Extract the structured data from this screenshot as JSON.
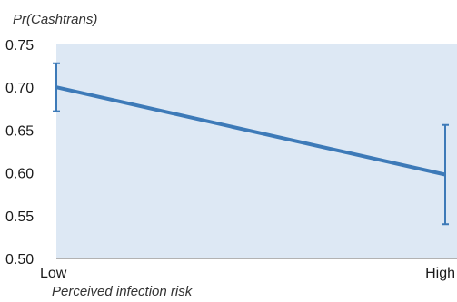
{
  "chart_data": {
    "type": "line",
    "title": "",
    "ylabel": "Pr(Cashtrans)",
    "xlabel": "Perceived infection risk",
    "categories": [
      "Low",
      "High"
    ],
    "ylim": [
      0.5,
      0.75
    ],
    "yticks": [
      "0.75",
      "0.70",
      "0.65",
      "0.60",
      "0.55",
      "0.50"
    ],
    "ytick_values": [
      0.75,
      0.7,
      0.65,
      0.6,
      0.55,
      0.5
    ],
    "grid": false,
    "series": [
      {
        "values": [
          0.7,
          0.598
        ],
        "error_low": [
          0.672,
          0.54
        ],
        "error_high": [
          0.728,
          0.656
        ]
      }
    ],
    "colors": {
      "plot_background": "#dde8f4",
      "line": "#3d7ab8",
      "axis": "#666666"
    }
  }
}
